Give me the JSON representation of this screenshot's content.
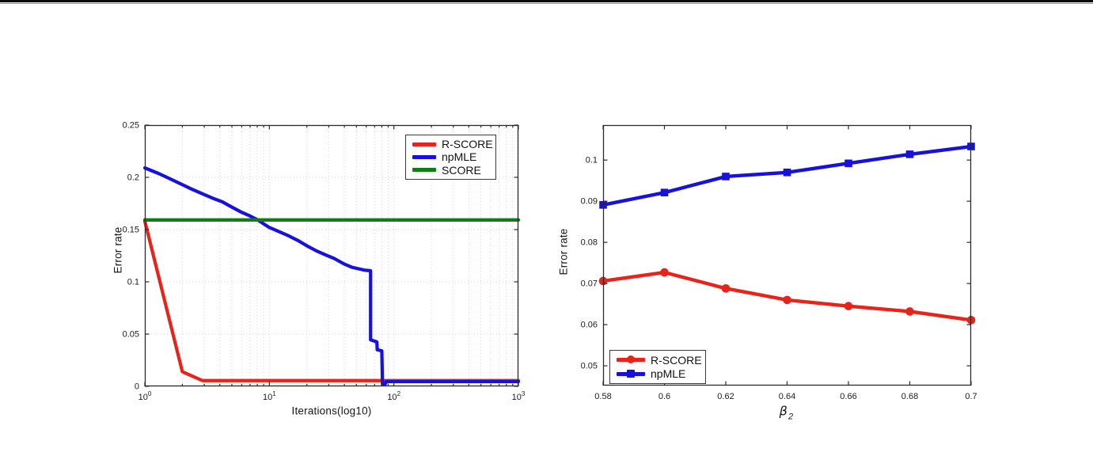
{
  "page": {
    "background": "#ffffff",
    "top_rule_color": "#0a0a0a"
  },
  "colors": {
    "red": "#e8231a",
    "blue": "#1611dd",
    "green": "#0e7f13",
    "grid": "#d4d4d4",
    "axis": "#2b2b2b",
    "text": "#1c1c1c"
  },
  "chart_data": [
    {
      "name": "error-rate-vs-iterations",
      "type": "line",
      "title": "",
      "xlabel": "Iterations(log10)",
      "ylabel": "Error rate",
      "x_scale": "log10",
      "xlim": [
        1,
        1000
      ],
      "ylim": [
        0,
        0.25
      ],
      "grid": true,
      "legend_position": "top-right-inside",
      "x_major_ticks": [
        {
          "v": 1,
          "base": "10",
          "exp": "0"
        },
        {
          "v": 10,
          "base": "10",
          "exp": "1"
        },
        {
          "v": 100,
          "base": "10",
          "exp": "2"
        },
        {
          "v": 1000,
          "base": "10",
          "exp": "3"
        }
      ],
      "x_minor_ticks": [
        2,
        3,
        4,
        5,
        6,
        7,
        8,
        9,
        20,
        30,
        40,
        50,
        60,
        70,
        80,
        90,
        200,
        300,
        400,
        500,
        600,
        700,
        800,
        900
      ],
      "y_ticks": [
        {
          "v": 0,
          "label": "0"
        },
        {
          "v": 0.05,
          "label": "0.05"
        },
        {
          "v": 0.1,
          "label": "0.1"
        },
        {
          "v": 0.15,
          "label": "0.15"
        },
        {
          "v": 0.2,
          "label": "0.2"
        },
        {
          "v": 0.25,
          "label": "0.25"
        }
      ],
      "series": [
        {
          "name": "R-SCORE",
          "color": "#e8231a",
          "marker": "none",
          "line_width": 4.2,
          "points": [
            [
              1,
              0.158
            ],
            [
              2,
              0.014
            ],
            [
              2.9,
              0.0055
            ],
            [
              1000,
              0.0055
            ]
          ]
        },
        {
          "name": "npMLE",
          "color": "#1611dd",
          "marker": "none",
          "line_width": 4.2,
          "points": [
            [
              1,
              0.209
            ],
            [
              1.3,
              0.2035
            ],
            [
              1.6,
              0.1985
            ],
            [
              2,
              0.193
            ],
            [
              2.4,
              0.1885
            ],
            [
              3,
              0.1835
            ],
            [
              3.6,
              0.1795
            ],
            [
              4.2,
              0.1765
            ],
            [
              5,
              0.1715
            ],
            [
              6,
              0.1665
            ],
            [
              7,
              0.163
            ],
            [
              8,
              0.1595
            ],
            [
              9,
              0.1555
            ],
            [
              10,
              0.152
            ],
            [
              12,
              0.148
            ],
            [
              14,
              0.1445
            ],
            [
              17,
              0.1395
            ],
            [
              20,
              0.1345
            ],
            [
              24,
              0.1295
            ],
            [
              28,
              0.126
            ],
            [
              33,
              0.1225
            ],
            [
              40,
              0.117
            ],
            [
              46,
              0.114
            ],
            [
              52,
              0.1125
            ],
            [
              58,
              0.1112
            ],
            [
              65,
              0.1106
            ],
            [
              65,
              0.0445
            ],
            [
              73,
              0.0425
            ],
            [
              73.5,
              0.035
            ],
            [
              80,
              0.034
            ],
            [
              81,
              0.002
            ],
            [
              85,
              0.002
            ],
            [
              87,
              0.0045
            ],
            [
              1000,
              0.0045
            ]
          ]
        },
        {
          "name": "SCORE",
          "color": "#0e7f13",
          "marker": "none",
          "line_width": 4.4,
          "points": [
            [
              1,
              0.1592
            ],
            [
              1000,
              0.1592
            ]
          ]
        }
      ],
      "draw_order": [
        0,
        1,
        2
      ]
    },
    {
      "name": "error-rate-vs-beta2",
      "type": "line",
      "title": "",
      "xlabel_math": {
        "symbol": "β",
        "subscript": "2"
      },
      "ylabel": "Error rate",
      "x_scale": "linear",
      "xlim": [
        0.58,
        0.7
      ],
      "ylim": [
        0.0452,
        0.1085
      ],
      "grid": false,
      "legend_position": "bottom-left-inside",
      "x_major_ticks": [
        {
          "v": 0.58,
          "label": "0.58"
        },
        {
          "v": 0.6,
          "label": "0.6"
        },
        {
          "v": 0.62,
          "label": "0.62"
        },
        {
          "v": 0.64,
          "label": "0.64"
        },
        {
          "v": 0.66,
          "label": "0.66"
        },
        {
          "v": 0.68,
          "label": "0.68"
        },
        {
          "v": 0.7,
          "label": "0.7"
        }
      ],
      "x_minor_ticks": [],
      "y_ticks": [
        {
          "v": 0.05,
          "label": "0.05"
        },
        {
          "v": 0.06,
          "label": "0.06"
        },
        {
          "v": 0.07,
          "label": "0.07"
        },
        {
          "v": 0.08,
          "label": "0.08"
        },
        {
          "v": 0.09,
          "label": "0.09"
        },
        {
          "v": 0.1,
          "label": "0.1"
        }
      ],
      "series": [
        {
          "name": "R-SCORE",
          "color": "#e8231a",
          "marker": "circle",
          "line_width": 4.4,
          "points": [
            [
              0.58,
              0.0706
            ],
            [
              0.6,
              0.0727
            ],
            [
              0.62,
              0.0688
            ],
            [
              0.64,
              0.066
            ],
            [
              0.66,
              0.0645
            ],
            [
              0.68,
              0.0632
            ],
            [
              0.7,
              0.0611
            ]
          ]
        },
        {
          "name": "npMLE",
          "color": "#1611dd",
          "marker": "square",
          "line_width": 4.4,
          "points": [
            [
              0.58,
              0.0891
            ],
            [
              0.6,
              0.0921
            ],
            [
              0.62,
              0.096
            ],
            [
              0.64,
              0.097
            ],
            [
              0.66,
              0.0992
            ],
            [
              0.68,
              0.1014
            ],
            [
              0.7,
              0.1033
            ]
          ]
        }
      ],
      "draw_order": [
        0,
        1
      ]
    }
  ]
}
